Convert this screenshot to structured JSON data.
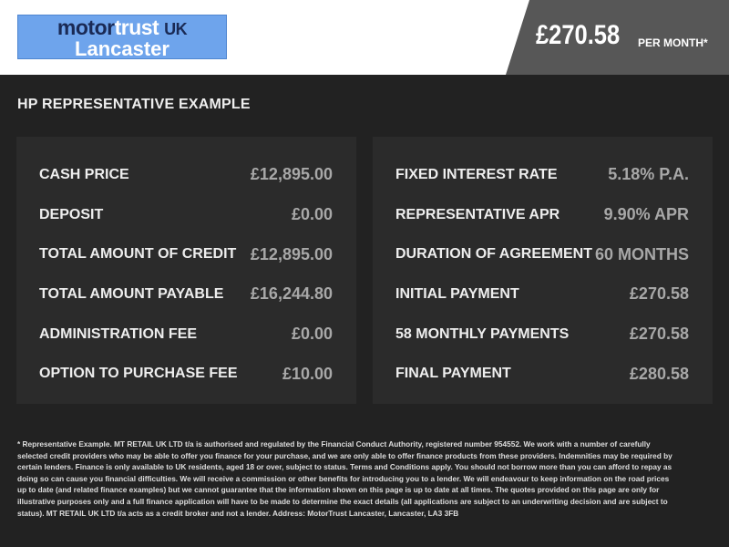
{
  "header": {
    "logo": {
      "word1": "motor",
      "word2": "trust",
      "word3": "UK",
      "line2": "Lancaster",
      "bg_color": "#6ea4ec"
    },
    "price": "£270.58",
    "price_suffix": "PER MONTH*"
  },
  "title": "HP REPRESENTATIVE EXAMPLE",
  "left_panel": [
    {
      "label": "CASH PRICE",
      "value": "£12,895.00"
    },
    {
      "label": "DEPOSIT",
      "value": "£0.00"
    },
    {
      "label": "TOTAL AMOUNT OF CREDIT",
      "value": "£12,895.00"
    },
    {
      "label": "TOTAL AMOUNT PAYABLE",
      "value": "£16,244.80"
    },
    {
      "label": "ADMINISTRATION FEE",
      "value": "£0.00"
    },
    {
      "label": "OPTION TO PURCHASE FEE",
      "value": "£10.00"
    }
  ],
  "right_panel": [
    {
      "label": "FIXED INTEREST RATE",
      "value": "5.18% P.A."
    },
    {
      "label": "REPRESENTATIVE APR",
      "value": "9.90% APR"
    },
    {
      "label": "DURATION OF AGREEMENT",
      "value": "60 MONTHS"
    },
    {
      "label": "INITIAL PAYMENT",
      "value": "£270.58"
    },
    {
      "label": "58 MONTHLY PAYMENTS",
      "value": "£270.58"
    },
    {
      "label": "FINAL PAYMENT",
      "value": "£280.58"
    }
  ],
  "footer": "* Representative Example. MT RETAIL UK LTD t/a is authorised and regulated by the Financial Conduct Authority, registered number 954552. We work with a number of carefully selected credit providers who may be able to offer you finance for your purchase, and we are only able to offer finance products from these providers. Indemnities may be required by certain lenders. Finance is only available to UK residents, aged 18 or over, subject to status. Terms and Conditions apply. You should not borrow more than you can afford to repay as doing so can cause you financial difficulties. We will receive a commission or other benefits for introducing you to a lender. We will endeavour to keep information on the road prices up to date (and related finance examples) but we cannot guarantee that the information shown on this page is up to date at all times. The quotes provided on this page are only for illustrative purposes only and a full finance application will have to be made to determine the exact details (all applications are subject to an underwriting decision and are subject to status). MT RETAIL UK LTD t/a acts as a credit broker and not a lender. Address: MotorTrust Lancaster, Lancaster, LA3 3FB"
}
